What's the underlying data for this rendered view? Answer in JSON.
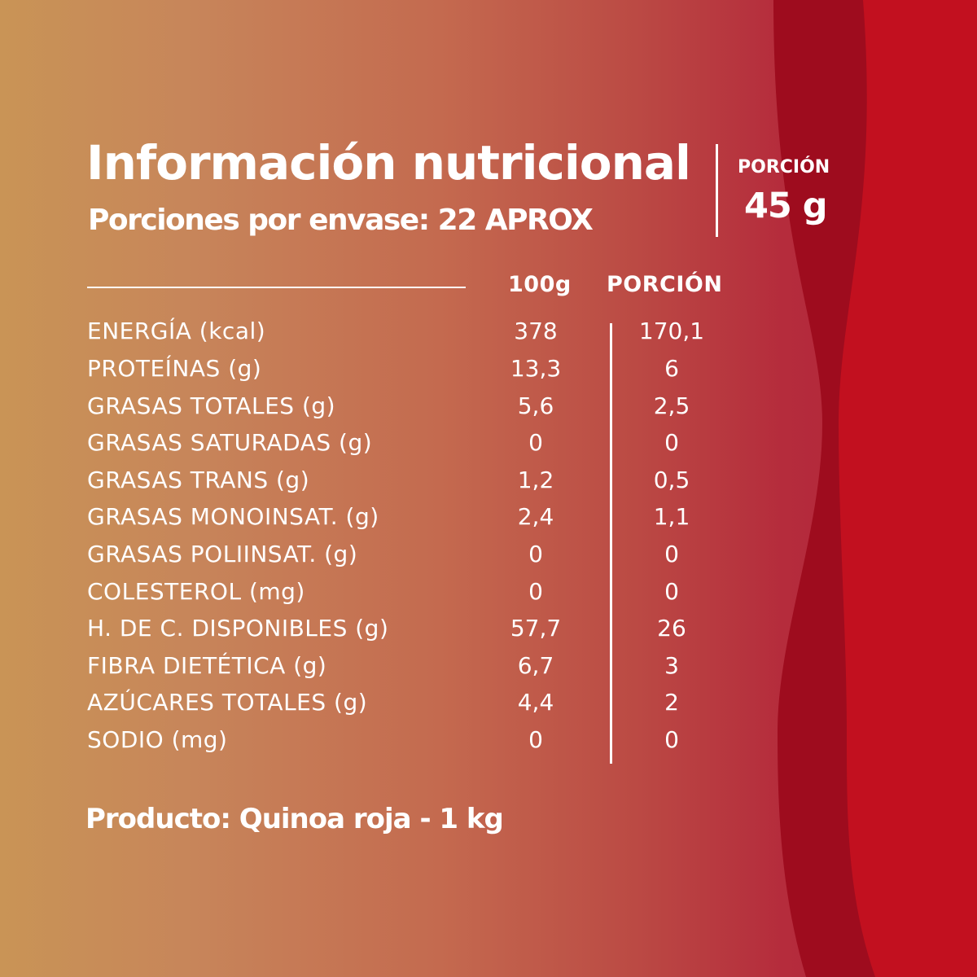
{
  "header": {
    "title": "Información nutricional",
    "subtitle": "Porciones por envase:  22 APROX",
    "portion_label": "PORCIÓN",
    "portion_value": "45 g"
  },
  "table": {
    "col_100g": "100g",
    "col_portion": "PORCIÓN",
    "rows": [
      {
        "label": "ENERGÍA (kcal)",
        "per100": "378",
        "portion": "170,1"
      },
      {
        "label": "PROTEÍNAS (g)",
        "per100": "13,3",
        "portion": "6"
      },
      {
        "label": "GRASAS TOTALES (g)",
        "per100": "5,6",
        "portion": "2,5"
      },
      {
        "label": "GRASAS SATURADAS (g)",
        "per100": "0",
        "portion": "0"
      },
      {
        "label": "GRASAS TRANS (g)",
        "per100": "1,2",
        "portion": "0,5"
      },
      {
        "label": "GRASAS MONOINSAT. (g)",
        "per100": "2,4",
        "portion": "1,1"
      },
      {
        "label": "GRASAS POLIINSAT. (g)",
        "per100": "0",
        "portion": "0"
      },
      {
        "label": "COLESTEROL (mg)",
        "per100": "0",
        "portion": "0"
      },
      {
        "label": "H. DE C. DISPONIBLES (g)",
        "per100": "57,7",
        "portion": "26"
      },
      {
        "label": "FIBRA DIETÉTICA (g)",
        "per100": "6,7",
        "portion": "3"
      },
      {
        "label": "AZÚCARES TOTALES (g)",
        "per100": "4,4",
        "portion": "2"
      },
      {
        "label": "SODIO (mg)",
        "per100": "0",
        "portion": "0"
      }
    ]
  },
  "footer": {
    "product": "Producto: Quinoa roja - 1 kg"
  },
  "colors": {
    "text": "#ffffff",
    "gradient_start": "#c99456",
    "gradient_end": "#b02038",
    "wave_dark": "#9a0a1c",
    "wave_bright": "#c4101f"
  }
}
